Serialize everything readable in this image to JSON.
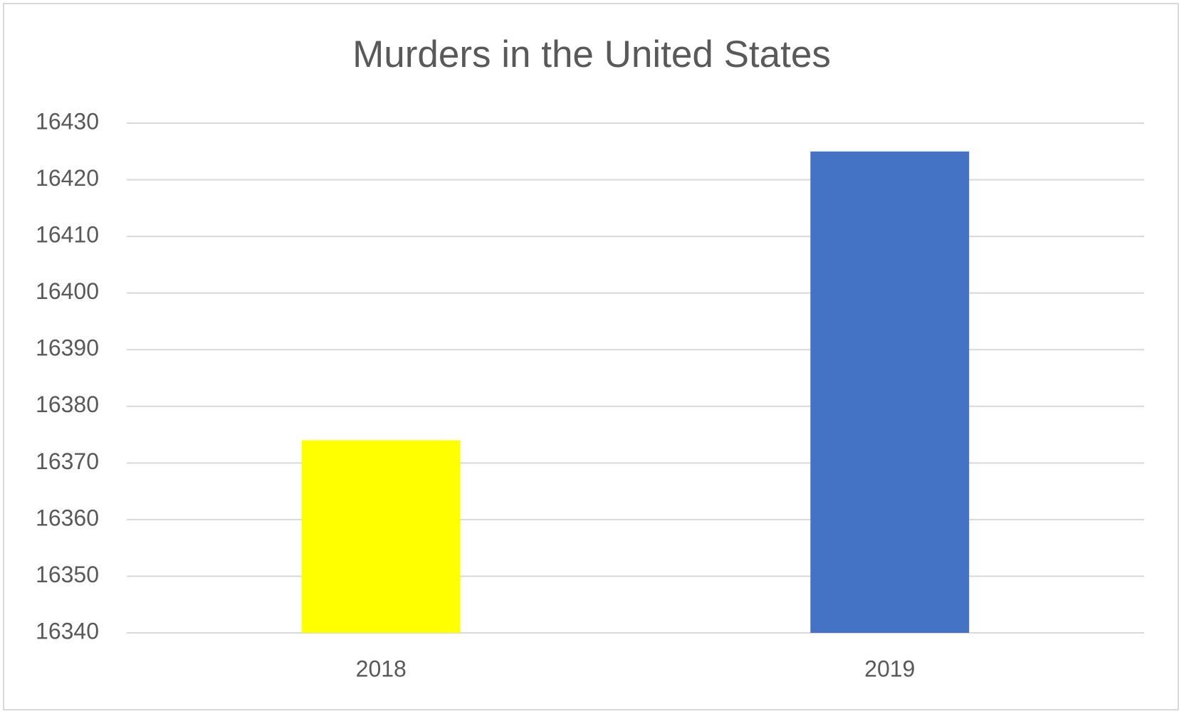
{
  "chart_data": {
    "type": "bar",
    "title": "Murders in the United States",
    "categories": [
      "2018",
      "2019"
    ],
    "values": [
      16374,
      16425
    ],
    "colors": [
      "#ffff00",
      "#4472c4"
    ],
    "ylim": [
      16340,
      16430
    ],
    "yticks": [
      16340,
      16350,
      16360,
      16370,
      16380,
      16390,
      16400,
      16410,
      16420,
      16430
    ],
    "grid": true
  }
}
